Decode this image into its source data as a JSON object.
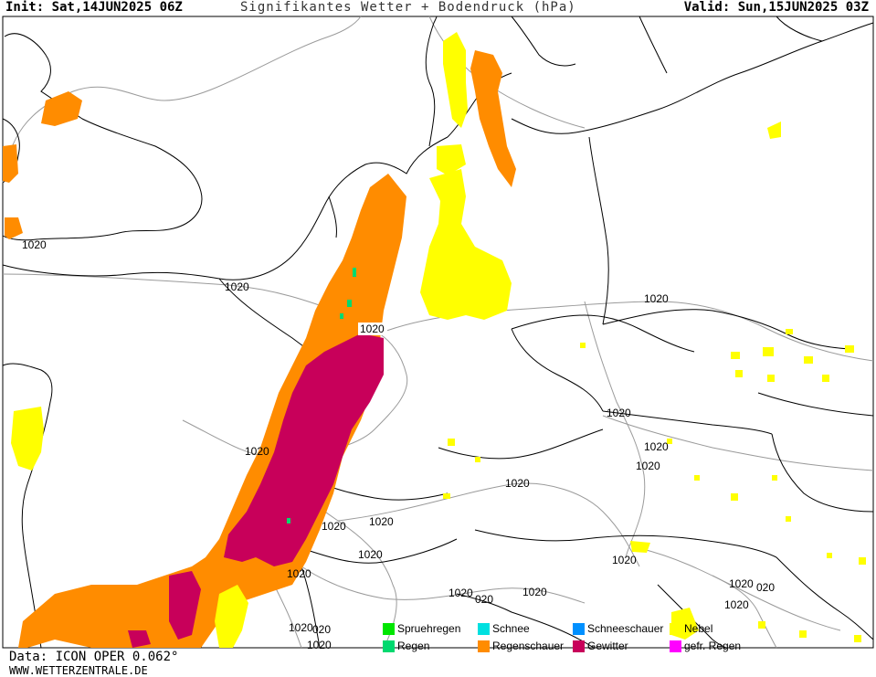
{
  "header": {
    "init": "Init: Sat,14JUN2025 06Z",
    "title": "Signifikantes Wetter + Bodendruck (hPa)",
    "valid": "Valid: Sun,15JUN2025 03Z"
  },
  "footer": {
    "data": "Data: ICON OPER 0.062°",
    "site": "WWW.WETTERZENTRALE.DE"
  },
  "isobar_label": "1020",
  "isobar_label_short": "020",
  "legend": [
    {
      "label": "Spruehregen",
      "color": "#00e600"
    },
    {
      "label": "Schnee",
      "color": "#00e0e0"
    },
    {
      "label": "Schneeschauer",
      "color": "#0090ff"
    },
    {
      "label": "Nebel",
      "color": "#ffff00"
    },
    {
      "label": "Regen",
      "color": "#00d96f"
    },
    {
      "label": "Regenschauer",
      "color": "#ff8c00"
    },
    {
      "label": "Gewitter",
      "color": "#c8005a"
    },
    {
      "label": "gefr. Regen",
      "color": "#ff00ff"
    }
  ],
  "colors": {
    "border": "#000000",
    "isobar": "#9a9a9a",
    "background": "#ffffff"
  }
}
